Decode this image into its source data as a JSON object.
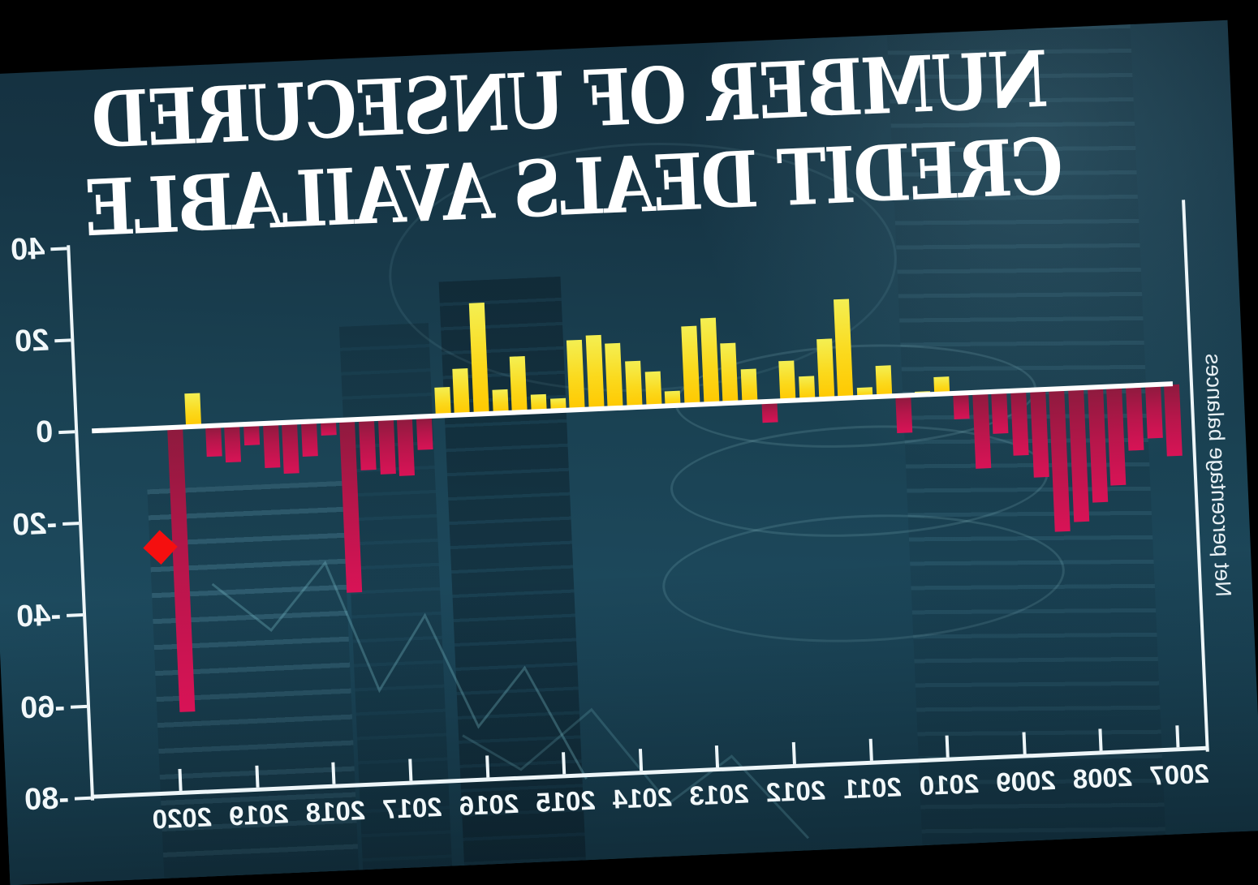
{
  "title": {
    "line1": "NUMBER OF UNSECURED",
    "line2": "CREDIT DEALS AVAILABLE"
  },
  "y_axis": {
    "label": "Net percentage balances",
    "ticks": [
      {
        "label": "40",
        "value": 40
      },
      {
        "label": "20",
        "value": 20
      },
      {
        "label": "0",
        "value": 0
      },
      {
        "label": "-20",
        "value": -20
      },
      {
        "label": "-40",
        "value": -40
      },
      {
        "label": "-60",
        "value": -60
      },
      {
        "label": "-80",
        "value": -80
      }
    ]
  },
  "x_axis": {
    "years": [
      "2007",
      "2008",
      "2009",
      "2010",
      "2011",
      "2012",
      "2013",
      "2014",
      "2015",
      "2016",
      "2017",
      "2018",
      "2019",
      "2020"
    ]
  },
  "chart_data": {
    "type": "bar",
    "title": "NUMBER OF UNSECURED CREDIT DEALS AVAILABLE",
    "ylabel": "Net percentage balances",
    "ylim": [
      -80,
      40
    ],
    "orientation_note": "entire graphic is horizontally mirrored and tilted ~2.5deg; displayed order runs 2020 (left) to 2007 (right)",
    "series": [
      {
        "year": 2007,
        "q": 1,
        "value": -15.5
      },
      {
        "year": 2007,
        "q": 2,
        "value": -11.5
      },
      {
        "year": 2007,
        "q": 3,
        "value": -14
      },
      {
        "year": 2008,
        "q": 0,
        "value": -21.5
      },
      {
        "year": 2008,
        "q": 1,
        "value": -25
      },
      {
        "year": 2008,
        "q": 2,
        "value": -29
      },
      {
        "year": 2008,
        "q": 3,
        "value": -31
      },
      {
        "year": 2009,
        "q": 0,
        "value": -19
      },
      {
        "year": 2009,
        "q": 1,
        "value": -14
      },
      {
        "year": 2009,
        "q": 2,
        "value": -9
      },
      {
        "year": 2009,
        "q": 3,
        "value": -16.5
      },
      {
        "year": 2010,
        "q": 0,
        "value": -5.5
      },
      {
        "year": 2010,
        "q": 1,
        "value": 3.5
      },
      {
        "year": 2010,
        "q": 2,
        "value": 0.5
      },
      {
        "year": 2010,
        "q": 3,
        "value": -8
      },
      {
        "year": 2011,
        "q": 0,
        "value": 6.5
      },
      {
        "year": 2011,
        "q": 1,
        "value": 2
      },
      {
        "year": 2011,
        "q": 2,
        "value": 21.5
      },
      {
        "year": 2011,
        "q": 3,
        "value": 13
      },
      {
        "year": 2012,
        "q": 0,
        "value": 5
      },
      {
        "year": 2012,
        "q": 1,
        "value": 8.5
      },
      {
        "year": 2012,
        "q": 2,
        "value": -4.5
      },
      {
        "year": 2012,
        "q": 3,
        "value": 7
      },
      {
        "year": 2013,
        "q": 0,
        "value": 13
      },
      {
        "year": 2013,
        "q": 1,
        "value": 18.5
      },
      {
        "year": 2013,
        "q": 2,
        "value": 17
      },
      {
        "year": 2013,
        "q": 3,
        "value": 3
      },
      {
        "year": 2014,
        "q": 0,
        "value": 7.5
      },
      {
        "year": 2014,
        "q": 1,
        "value": 10
      },
      {
        "year": 2014,
        "q": 2,
        "value": 14
      },
      {
        "year": 2014,
        "q": 3,
        "value": 16
      },
      {
        "year": 2015,
        "q": 0,
        "value": 15
      },
      {
        "year": 2015,
        "q": 1,
        "value": 2.5
      },
      {
        "year": 2015,
        "q": 2,
        "value": 3.5
      },
      {
        "year": 2015,
        "q": 3,
        "value": 12
      },
      {
        "year": 2016,
        "q": 0,
        "value": 5
      },
      {
        "year": 2016,
        "q": 1,
        "value": 24
      },
      {
        "year": 2016,
        "q": 2,
        "value": 10
      },
      {
        "year": 2016,
        "q": 3,
        "value": 6
      },
      {
        "year": 2017,
        "q": 0,
        "value": -7
      },
      {
        "year": 2017,
        "q": 1,
        "value": -12.5
      },
      {
        "year": 2017,
        "q": 2,
        "value": -12
      },
      {
        "year": 2017,
        "q": 3,
        "value": -11
      },
      {
        "year": 2018,
        "q": 0,
        "value": -37.5
      },
      {
        "year": 2018,
        "q": 1,
        "value": -3
      },
      {
        "year": 2018,
        "q": 2,
        "value": -7.5
      },
      {
        "year": 2018,
        "q": 3,
        "value": -11
      },
      {
        "year": 2019,
        "q": 0,
        "value": -9.5
      },
      {
        "year": 2019,
        "q": 1,
        "value": -4.5
      },
      {
        "year": 2019,
        "q": 2,
        "value": -8
      },
      {
        "year": 2019,
        "q": 3,
        "value": -6.5
      },
      {
        "year": 2020,
        "q": 0,
        "value": 7
      },
      {
        "year": 2020,
        "q": 1,
        "value": -62
      }
    ],
    "expectation_marker": {
      "shape": "diamond",
      "year": 2020,
      "q": 2,
      "value": -26
    },
    "colors": {
      "positive": "#ffc800",
      "positive_top": "#f4ef52",
      "negative": "#d81356",
      "negative_top": "#8e1a3e",
      "marker": "#f50f0f",
      "axis": "#eef6f9",
      "background_teal": "#1a4152",
      "title_text": "#ffffff"
    },
    "legend": "none",
    "grid": "off"
  }
}
